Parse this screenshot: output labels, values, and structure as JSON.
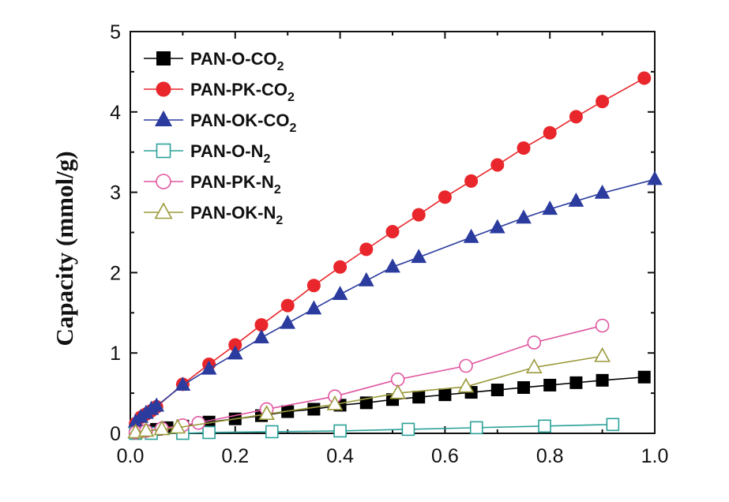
{
  "chart_data": {
    "type": "line",
    "title": "",
    "xlabel": "",
    "ylabel": "Capacity (mmol/g)",
    "xlim": [
      0.0,
      1.0
    ],
    "ylim": [
      0,
      5
    ],
    "xticks": [
      "0.0",
      "0.2",
      "0.4",
      "0.6",
      "0.8",
      "1.0"
    ],
    "yticks": [
      "0",
      "1",
      "2",
      "3",
      "4",
      "5"
    ],
    "grid": false,
    "legend_position": "top-left",
    "series": [
      {
        "name": "PAN-O-CO2",
        "label_main": "PAN-O-CO",
        "label_sub": "2",
        "color": "#000000",
        "marker": "square",
        "filled": true,
        "x": [
          0.01,
          0.03,
          0.05,
          0.07,
          0.1,
          0.15,
          0.2,
          0.25,
          0.3,
          0.35,
          0.4,
          0.45,
          0.5,
          0.55,
          0.6,
          0.65,
          0.7,
          0.75,
          0.8,
          0.85,
          0.9,
          0.98
        ],
        "y": [
          0.01,
          0.03,
          0.05,
          0.07,
          0.09,
          0.14,
          0.18,
          0.22,
          0.27,
          0.3,
          0.35,
          0.38,
          0.42,
          0.45,
          0.48,
          0.51,
          0.54,
          0.57,
          0.6,
          0.63,
          0.66,
          0.7
        ]
      },
      {
        "name": "PAN-PK-CO2",
        "label_main": "PAN-PK-CO",
        "label_sub": "2",
        "color": "#e8262b",
        "marker": "circle",
        "filled": true,
        "x": [
          0.01,
          0.02,
          0.03,
          0.04,
          0.05,
          0.1,
          0.15,
          0.2,
          0.25,
          0.3,
          0.35,
          0.4,
          0.45,
          0.5,
          0.55,
          0.6,
          0.65,
          0.7,
          0.75,
          0.8,
          0.85,
          0.9,
          0.98
        ],
        "y": [
          0.12,
          0.2,
          0.24,
          0.28,
          0.33,
          0.61,
          0.86,
          1.1,
          1.35,
          1.59,
          1.84,
          2.07,
          2.29,
          2.51,
          2.72,
          2.94,
          3.14,
          3.34,
          3.55,
          3.74,
          3.94,
          4.13,
          4.42
        ]
      },
      {
        "name": "PAN-OK-CO2",
        "label_main": "PAN-OK-CO",
        "label_sub": "2",
        "color": "#2b3b9e",
        "marker": "triangle",
        "filled": true,
        "x": [
          0.01,
          0.02,
          0.03,
          0.04,
          0.05,
          0.1,
          0.15,
          0.2,
          0.25,
          0.3,
          0.35,
          0.4,
          0.45,
          0.5,
          0.55,
          0.65,
          0.7,
          0.75,
          0.8,
          0.85,
          0.9,
          1.0
        ],
        "y": [
          0.14,
          0.2,
          0.25,
          0.3,
          0.34,
          0.6,
          0.8,
          0.99,
          1.19,
          1.37,
          1.55,
          1.73,
          1.9,
          2.07,
          2.19,
          2.44,
          2.56,
          2.68,
          2.79,
          2.89,
          2.99,
          3.16
        ]
      },
      {
        "name": "PAN-O-N2",
        "label_main": "PAN-O-N",
        "label_sub": "2",
        "color": "#2aa198",
        "marker": "square",
        "filled": false,
        "x": [
          0.01,
          0.04,
          0.1,
          0.15,
          0.27,
          0.4,
          0.53,
          0.66,
          0.79,
          0.92
        ],
        "y": [
          0.0,
          0.0,
          0.0,
          0.01,
          0.02,
          0.03,
          0.05,
          0.07,
          0.09,
          0.11
        ]
      },
      {
        "name": "PAN-PK-N2",
        "label_main": "PAN-PK-N",
        "label_sub": "2",
        "color": "#e056a0",
        "marker": "circle",
        "filled": false,
        "x": [
          0.01,
          0.03,
          0.06,
          0.1,
          0.13,
          0.26,
          0.39,
          0.51,
          0.64,
          0.77,
          0.9
        ],
        "y": [
          0.01,
          0.03,
          0.06,
          0.1,
          0.13,
          0.3,
          0.46,
          0.67,
          0.84,
          1.13,
          1.34
        ]
      },
      {
        "name": "PAN-OK-N2",
        "label_main": "PAN-OK-N",
        "label_sub": "2",
        "color": "#9c9a3c",
        "marker": "triangle",
        "filled": false,
        "x": [
          0.01,
          0.03,
          0.06,
          0.09,
          0.26,
          0.39,
          0.51,
          0.64,
          0.77,
          0.9
        ],
        "y": [
          0.01,
          0.03,
          0.05,
          0.07,
          0.24,
          0.36,
          0.5,
          0.58,
          0.82,
          0.96
        ]
      }
    ]
  }
}
